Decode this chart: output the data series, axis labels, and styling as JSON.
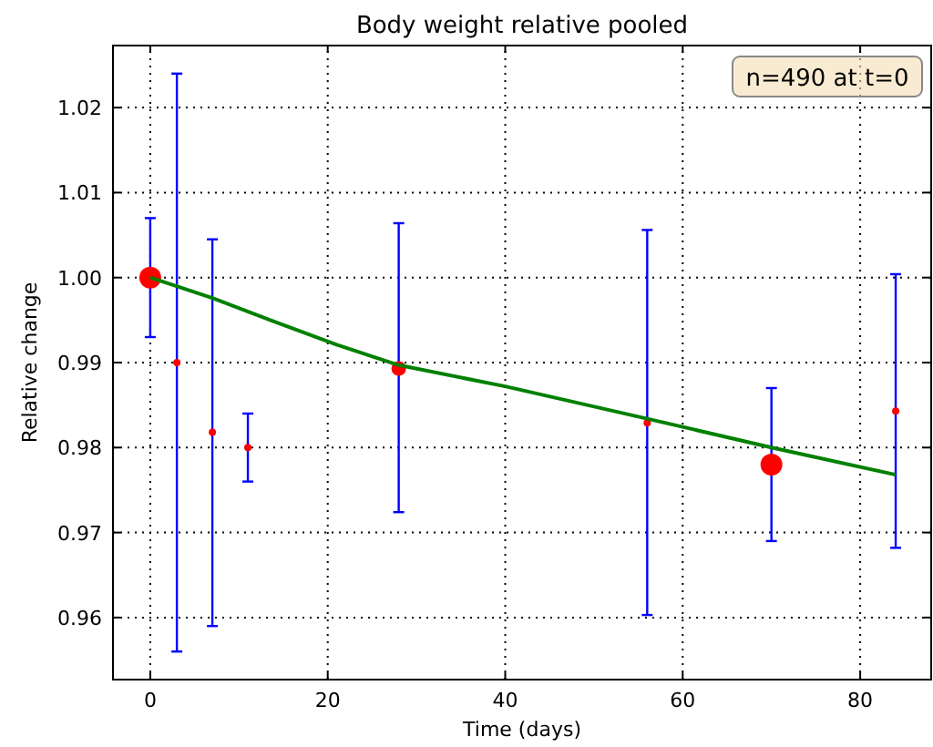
{
  "chart_data": {
    "type": "bubble",
    "title": "Body weight relative pooled",
    "xlabel": "Time (days)",
    "ylabel": "Relative change",
    "annotations": [
      "n=490 at t=0"
    ],
    "xlim": [
      -4.2,
      88
    ],
    "xticks": [
      0,
      20,
      40,
      60,
      80
    ],
    "ylim": [
      0.9527,
      1.0273
    ],
    "yticks": [
      0.96,
      0.97,
      0.98,
      0.99,
      {
        "value": 1.0,
        "label": "1.00"
      },
      1.01,
      1.02
    ],
    "grid": true,
    "series": [
      {
        "color": "#ff0000",
        "x": [
          0,
          3,
          7,
          11,
          28,
          56,
          70,
          84
        ],
        "values": [
          1.0,
          0.99,
          0.9818,
          0.98,
          0.9893,
          0.9829,
          0.978,
          0.9843
        ],
        "sizes": [
          1,
          0.11,
          0.11,
          0.11,
          0.45,
          0.11,
          1,
          0.11
        ],
        "errors": [
          [
            0.993,
            1.007
          ],
          [
            0.956,
            1.024
          ],
          [
            0.959,
            1.0045
          ],
          [
            0.976,
            0.984
          ],
          [
            0.9724,
            1.0064
          ],
          [
            0.9603,
            1.0056
          ],
          [
            0.969,
            0.987
          ],
          [
            0.9682,
            1.0004
          ]
        ]
      },
      {
        "type": "line",
        "color": "#008000",
        "x": [
          0,
          7,
          14,
          21,
          28,
          40,
          56,
          70,
          84
        ],
        "values": [
          1.0,
          0.9976,
          0.9948,
          0.9921,
          0.9897,
          0.9872,
          0.9834,
          0.98,
          0.9768
        ]
      }
    ]
  }
}
